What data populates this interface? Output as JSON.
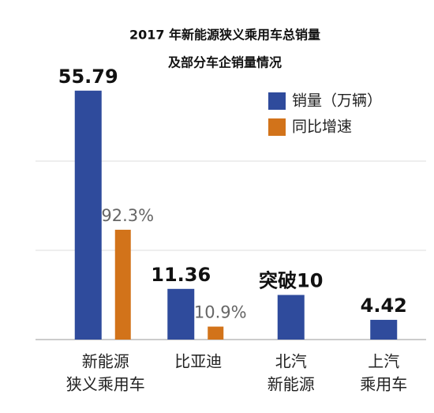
{
  "chart_data": {
    "type": "bar",
    "title": [
      "2017 年新能源狭义乘用车总销量",
      "及部分车企销量情况"
    ],
    "categories": [
      [
        "新能源",
        "狭义乘用车"
      ],
      [
        "比亚迪"
      ],
      [
        "北汽",
        "新能源"
      ],
      [
        "上汽",
        "乘用车"
      ]
    ],
    "series": [
      {
        "name": "销量（万辆）",
        "color": "#2f4b9c",
        "values": [
          55.79,
          11.36,
          10,
          4.42
        ],
        "value_labels": [
          "55.79",
          "11.36",
          "突破10",
          "4.42"
        ]
      },
      {
        "name": "同比增速",
        "color": "#d2731a",
        "axis": "y2",
        "values": [
          92.3,
          10.9,
          null,
          null
        ],
        "value_labels": [
          "92.3%",
          "10.9%",
          null,
          null
        ]
      }
    ],
    "ylim": [
      0,
      60
    ],
    "yticks": [
      0,
      20,
      40
    ],
    "y2lim": [
      0,
      225
    ],
    "grid": true
  }
}
